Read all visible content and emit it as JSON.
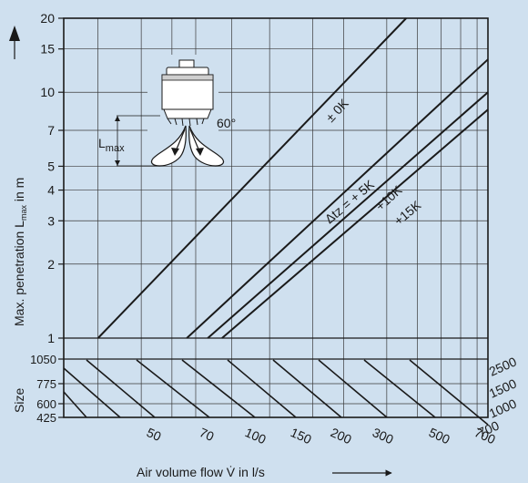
{
  "chart_data": [
    {
      "type": "line",
      "scale": "log-log",
      "ylabel_prefix": "Max. penetration L",
      "ylabel_sub": "max",
      "ylabel_suffix": " in m",
      "xlabel": "Air volume flow V̇ in l/s",
      "x_ticks": [
        "50",
        "70",
        "100",
        "150",
        "200",
        "300",
        "500",
        "700"
      ],
      "y_ticks": [
        "1",
        "2",
        "3",
        "4",
        "5",
        "7",
        "10",
        "15",
        "20"
      ],
      "ylim": [
        1,
        20
      ],
      "grid": true,
      "series": [
        {
          "name": "± 0K",
          "points": [
            [
              20,
              1
            ],
            [
              360,
              20
            ]
          ]
        },
        {
          "name": "Δtz = + 5K",
          "points": [
            [
              46,
              1
            ],
            [
              775,
              13.6
            ]
          ]
        },
        {
          "name": "+10K",
          "points": [
            [
              56,
              1
            ],
            [
              775,
              10
            ]
          ]
        },
        {
          "name": "+15K",
          "points": [
            [
              64,
              1
            ],
            [
              775,
              8.5
            ]
          ]
        }
      ]
    },
    {
      "type": "line",
      "ylabel": "Size",
      "size_ticks": [
        "1050",
        "775",
        "600",
        "425"
      ],
      "size_curve_labels": [
        "2500",
        "1500",
        "1000",
        "700"
      ],
      "note": "Nomogram band relating diffuser size to air volume flow"
    }
  ],
  "diagram": {
    "angle_label": "60°",
    "length_label_main": "L",
    "length_label_sub": "max"
  },
  "colors": {
    "background": "#cfe0ef",
    "lines": "#1a1a1a",
    "grid": "#3a3a3a"
  }
}
